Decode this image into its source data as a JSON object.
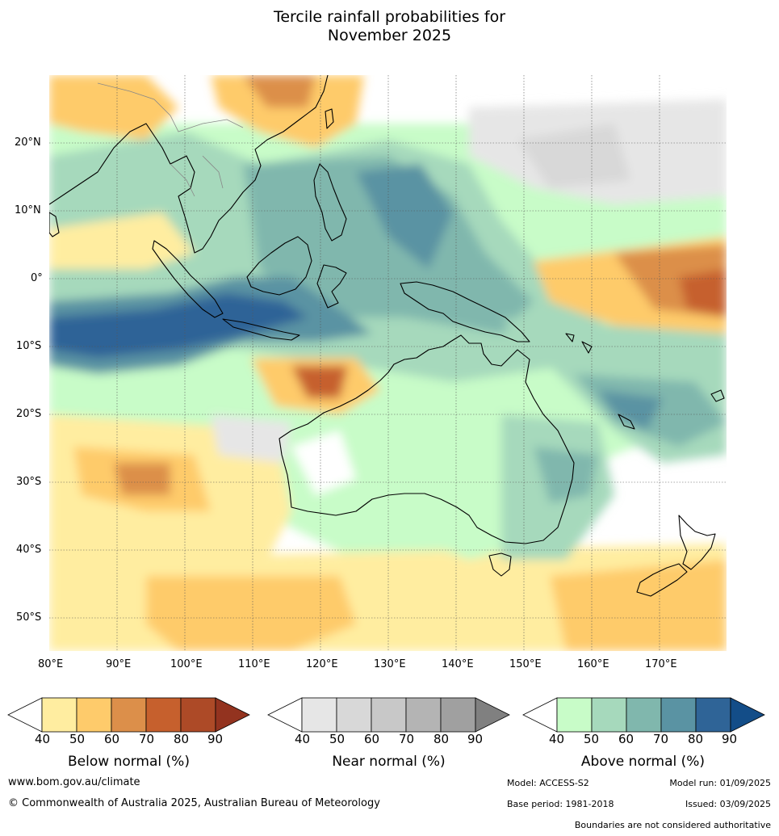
{
  "title": {
    "line1": "Tercile rainfall probabilities for",
    "line2": "November 2025"
  },
  "map": {
    "lon_labels": [
      "80°E",
      "90°E",
      "100°E",
      "110°E",
      "120°E",
      "130°E",
      "140°E",
      "150°E",
      "160°E",
      "170°E"
    ],
    "lat_labels": [
      "20°N",
      "10°N",
      "0°",
      "10°S",
      "20°S",
      "30°S",
      "40°S",
      "50°S"
    ],
    "lon_range": [
      80,
      180
    ],
    "lat_range": [
      -55,
      30
    ]
  },
  "colorbars": [
    {
      "label": "Below normal (%)",
      "ticks": [
        "40",
        "50",
        "60",
        "70",
        "80",
        "90"
      ],
      "colors": [
        "#ffeda0",
        "#fecb6b",
        "#dc8f4a",
        "#c6602d",
        "#ad4a27",
        "#93331f"
      ]
    },
    {
      "label": "Near normal (%)",
      "ticks": [
        "40",
        "50",
        "60",
        "70",
        "80",
        "90"
      ],
      "colors": [
        "#e6e6e6",
        "#d8d8d8",
        "#c8c8c8",
        "#b4b4b4",
        "#a0a0a0",
        "#808080"
      ]
    },
    {
      "label": "Above normal (%)",
      "ticks": [
        "40",
        "50",
        "60",
        "70",
        "80",
        "90"
      ],
      "colors": [
        "#c8fcc8",
        "#a6d9bc",
        "#80b7ad",
        "#5a93a3",
        "#2f6497",
        "#134d88"
      ]
    }
  ],
  "footer": {
    "url": "www.bom.gov.au/climate",
    "copyright": "© Commonwealth of Australia 2025, Australian Bureau of Meteorology",
    "model": "Model: ACCESS-S2",
    "model_run": "Model run: 01/09/2025",
    "base_period": "Base period: 1981-2018",
    "issued": "Issued: 03/09/2025",
    "disclaimer": "Boundaries are not considered authoritative"
  }
}
